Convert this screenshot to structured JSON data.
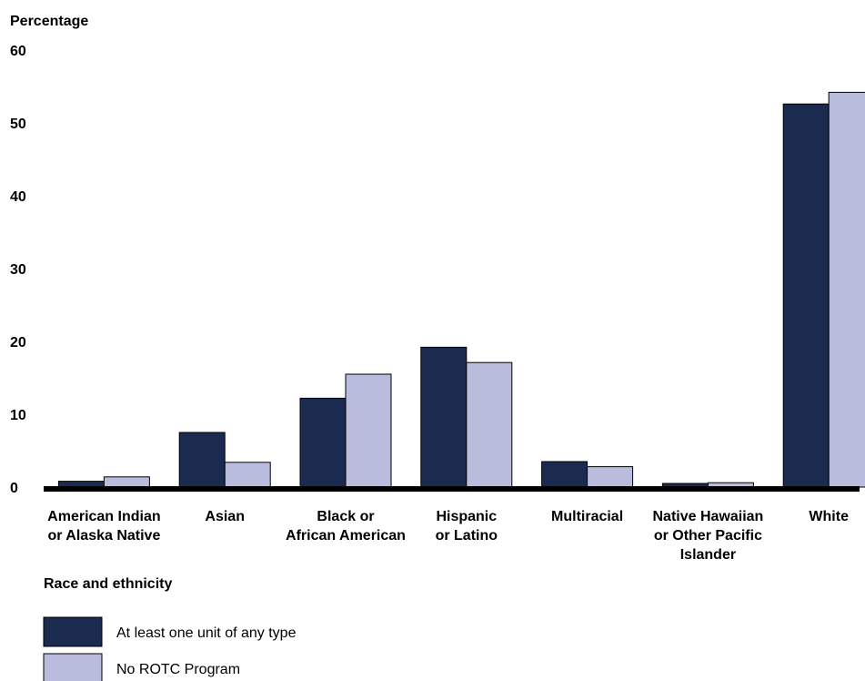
{
  "chart_data": {
    "type": "bar",
    "ylabel": "Percentage",
    "xlabel": "Race and ethnicity",
    "ylim": [
      0,
      60
    ],
    "yticks": [
      0,
      10,
      20,
      30,
      40,
      50,
      60
    ],
    "grid": false,
    "legend_position": "bottom-left",
    "categories": [
      [
        "American Indian",
        "or Alaska Native"
      ],
      [
        "Asian"
      ],
      [
        "Black or",
        "African American"
      ],
      [
        "Hispanic",
        "or Latino"
      ],
      [
        "Multiracial"
      ],
      [
        "Native Hawaiian",
        "or Other Pacific",
        "Islander"
      ],
      [
        "White"
      ]
    ],
    "series": [
      {
        "name": "At least one unit of any type",
        "color": "#1b2a4f",
        "values": [
          0.8,
          7.5,
          12.2,
          19.2,
          3.5,
          0.5,
          52.6
        ]
      },
      {
        "name": "No ROTC Program",
        "color": "#b9bcdc",
        "values": [
          1.4,
          3.4,
          15.5,
          17.1,
          2.8,
          0.6,
          54.2
        ]
      }
    ]
  }
}
